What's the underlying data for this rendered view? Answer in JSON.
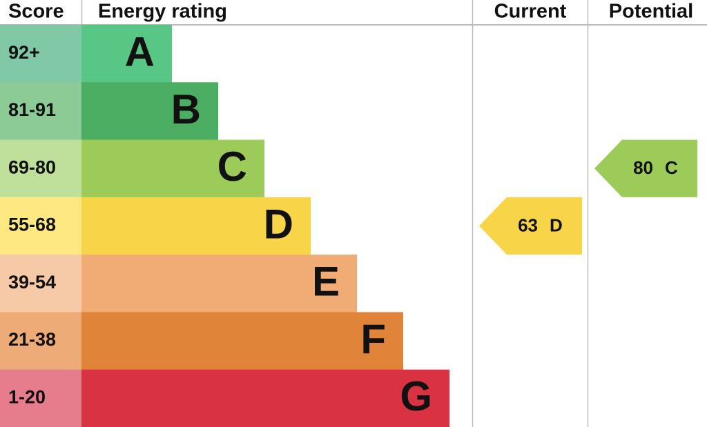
{
  "header": {
    "score": "Score",
    "rating": "Energy rating",
    "current": "Current",
    "potential": "Potential"
  },
  "bands": [
    {
      "score": "92+",
      "letter": "A"
    },
    {
      "score": "81-91",
      "letter": "B"
    },
    {
      "score": "69-80",
      "letter": "C"
    },
    {
      "score": "55-68",
      "letter": "D"
    },
    {
      "score": "39-54",
      "letter": "E"
    },
    {
      "score": "21-38",
      "letter": "F"
    },
    {
      "score": "1-20",
      "letter": "G"
    }
  ],
  "current": {
    "score": 63,
    "letter": "D"
  },
  "potential": {
    "score": 80,
    "letter": "C"
  }
}
